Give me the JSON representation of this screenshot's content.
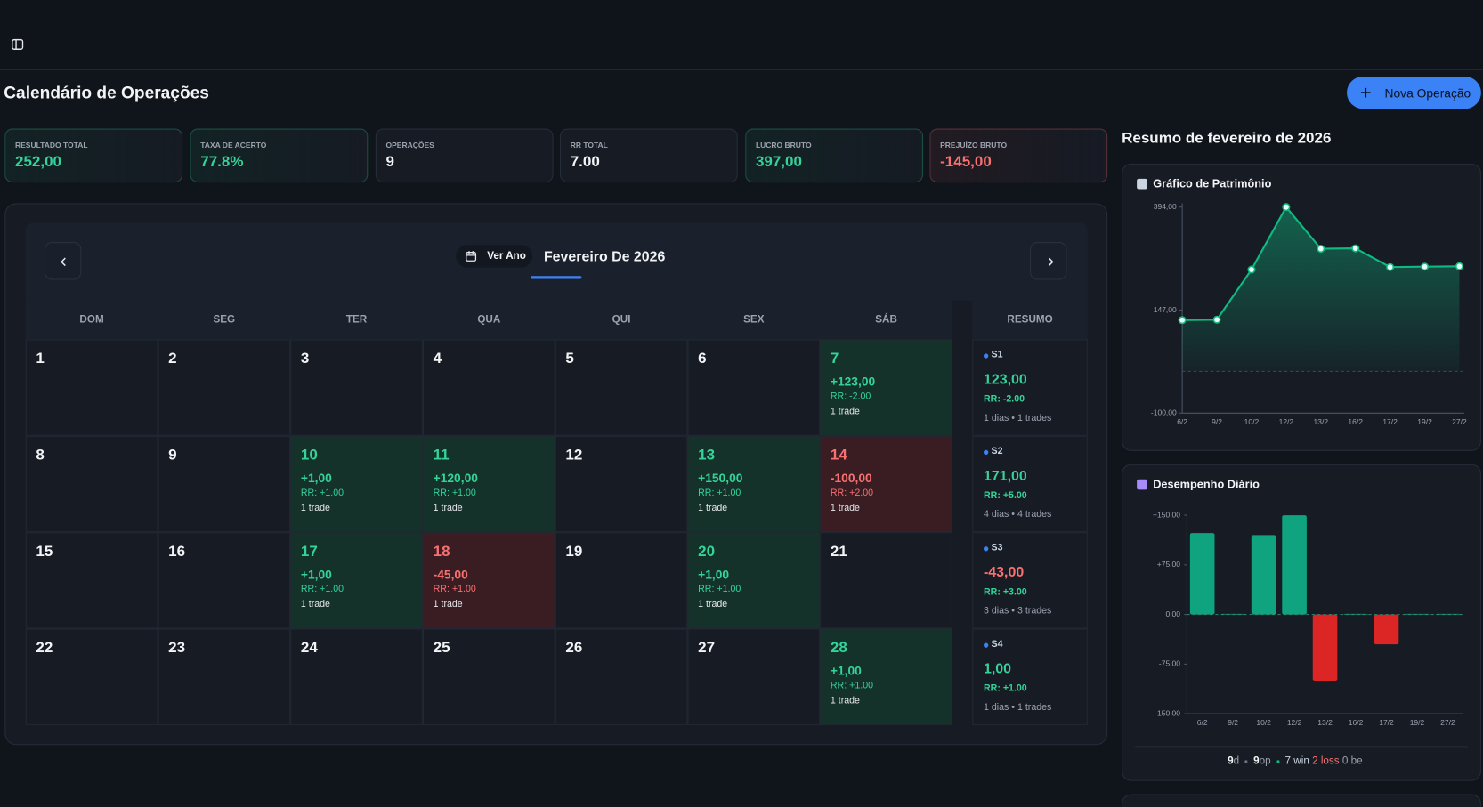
{
  "header": {
    "title": "Calendário de Operações",
    "new_operation": "Nova Operação"
  },
  "stats": [
    {
      "label": "RESULTADO TOTAL",
      "value": "252,00",
      "color": "#34d399"
    },
    {
      "label": "TAXA DE ACERTO",
      "value": "77.8%",
      "color": "#34d399"
    },
    {
      "label": "OPERAÇÕES",
      "value": "9",
      "color": "#f3f4f6"
    },
    {
      "label": "RR TOTAL",
      "value": "7.00",
      "color": "#f3f4f6"
    },
    {
      "label": "LUCRO BRUTO",
      "value": "397,00",
      "color": "#34d399"
    },
    {
      "label": "PREJUÍZO BRUTO",
      "value": "-145,00",
      "color": "#f87171"
    }
  ],
  "calendar": {
    "view_year": "Ver Ano",
    "month": "Fevereiro De 2026",
    "weekdays": [
      "DOM",
      "SEG",
      "TER",
      "QUA",
      "QUI",
      "SEX",
      "SÁB"
    ],
    "summary_header": "RESUMO",
    "weeks": [
      [
        {
          "day": 1
        },
        {
          "day": 2
        },
        {
          "day": 3
        },
        {
          "day": 4
        },
        {
          "day": 5
        },
        {
          "day": 6
        },
        {
          "day": 7,
          "result": "+123,00",
          "rr": "RR: -2.00",
          "trades": "1 trade"
        }
      ],
      [
        {
          "day": 8
        },
        {
          "day": 9
        },
        {
          "day": 10,
          "result": "+1,00",
          "rr": "RR: +1.00",
          "trades": "1 trade"
        },
        {
          "day": 11,
          "result": "+120,00",
          "rr": "RR: +1.00",
          "trades": "1 trade"
        },
        {
          "day": 12
        },
        {
          "day": 13,
          "result": "+150,00",
          "rr": "RR: +1.00",
          "trades": "1 trade"
        },
        {
          "day": 14,
          "result": "-100,00",
          "rr": "RR: +2.00",
          "trades": "1 trade"
        }
      ],
      [
        {
          "day": 15
        },
        {
          "day": 16
        },
        {
          "day": 17,
          "result": "+1,00",
          "rr": "RR: +1.00",
          "trades": "1 trade"
        },
        {
          "day": 18,
          "result": "-45,00",
          "rr": "RR: +1.00",
          "trades": "1 trade"
        },
        {
          "day": 19
        },
        {
          "day": 20,
          "result": "+1,00",
          "rr": "RR: +1.00",
          "trades": "1 trade"
        },
        {
          "day": 21
        }
      ],
      [
        {
          "day": 22
        },
        {
          "day": 23
        },
        {
          "day": 24
        },
        {
          "day": 25
        },
        {
          "day": 26
        },
        {
          "day": 27
        },
        {
          "day": 28,
          "result": "+1,00",
          "rr": "RR: +1.00",
          "trades": "1 trade"
        }
      ]
    ],
    "summary": [
      {
        "week": "S1",
        "result": "123,00",
        "rr": "RR: -2.00",
        "info": "1 dias • 1 trades"
      },
      {
        "week": "S2",
        "result": "171,00",
        "rr": "RR: +5.00",
        "info": "4 dias • 4 trades"
      },
      {
        "week": "S3",
        "result": "-43,00",
        "rr": "RR: +3.00",
        "info": "3 dias • 3 trades"
      },
      {
        "week": "S4",
        "result": "1,00",
        "rr": "RR: +1.00",
        "info": "1 dias • 1 trades"
      }
    ]
  },
  "sidebar": {
    "title": "Resumo de fevereiro de 2026",
    "footer": {
      "days": "9",
      "days_unit": "d",
      "operations": "9",
      "operations_unit": "op",
      "wins": "7 win",
      "losses": "2 loss",
      "breakeven": "0 be"
    }
  },
  "chart_data": [
    {
      "type": "line",
      "title": "Gráfico de Patrimônio",
      "color": "#10b981",
      "categories": [
        "6/2",
        "9/2",
        "10/2",
        "12/2",
        "13/2",
        "16/2",
        "17/2",
        "19/2",
        "27/2"
      ],
      "values": [
        123,
        124,
        244,
        394,
        294,
        295,
        250,
        251,
        252
      ],
      "ylim": [
        -100,
        394
      ],
      "yticks": [
        {
          "value": 394,
          "label": "394,00"
        },
        {
          "value": 147,
          "label": "147,00"
        },
        {
          "value": -100,
          "label": "-100,00"
        }
      ]
    },
    {
      "type": "bar",
      "title": "Desempenho Diário",
      "color": "#10a37f",
      "negative_color": "#dc2626",
      "categories": [
        "6/2",
        "9/2",
        "10/2",
        "12/2",
        "13/2",
        "16/2",
        "17/2",
        "19/2",
        "27/2"
      ],
      "values": [
        123,
        1,
        120,
        150,
        -100,
        1,
        -45,
        1,
        1
      ],
      "ylim": [
        -150,
        150
      ],
      "yticks": [
        {
          "value": 150,
          "label": "+150,00"
        },
        {
          "value": 75,
          "label": "+75,00"
        },
        {
          "value": 0,
          "label": "0,00"
        },
        {
          "value": -75,
          "label": "-75,00"
        },
        {
          "value": -150,
          "label": "-150,00"
        }
      ]
    }
  ]
}
